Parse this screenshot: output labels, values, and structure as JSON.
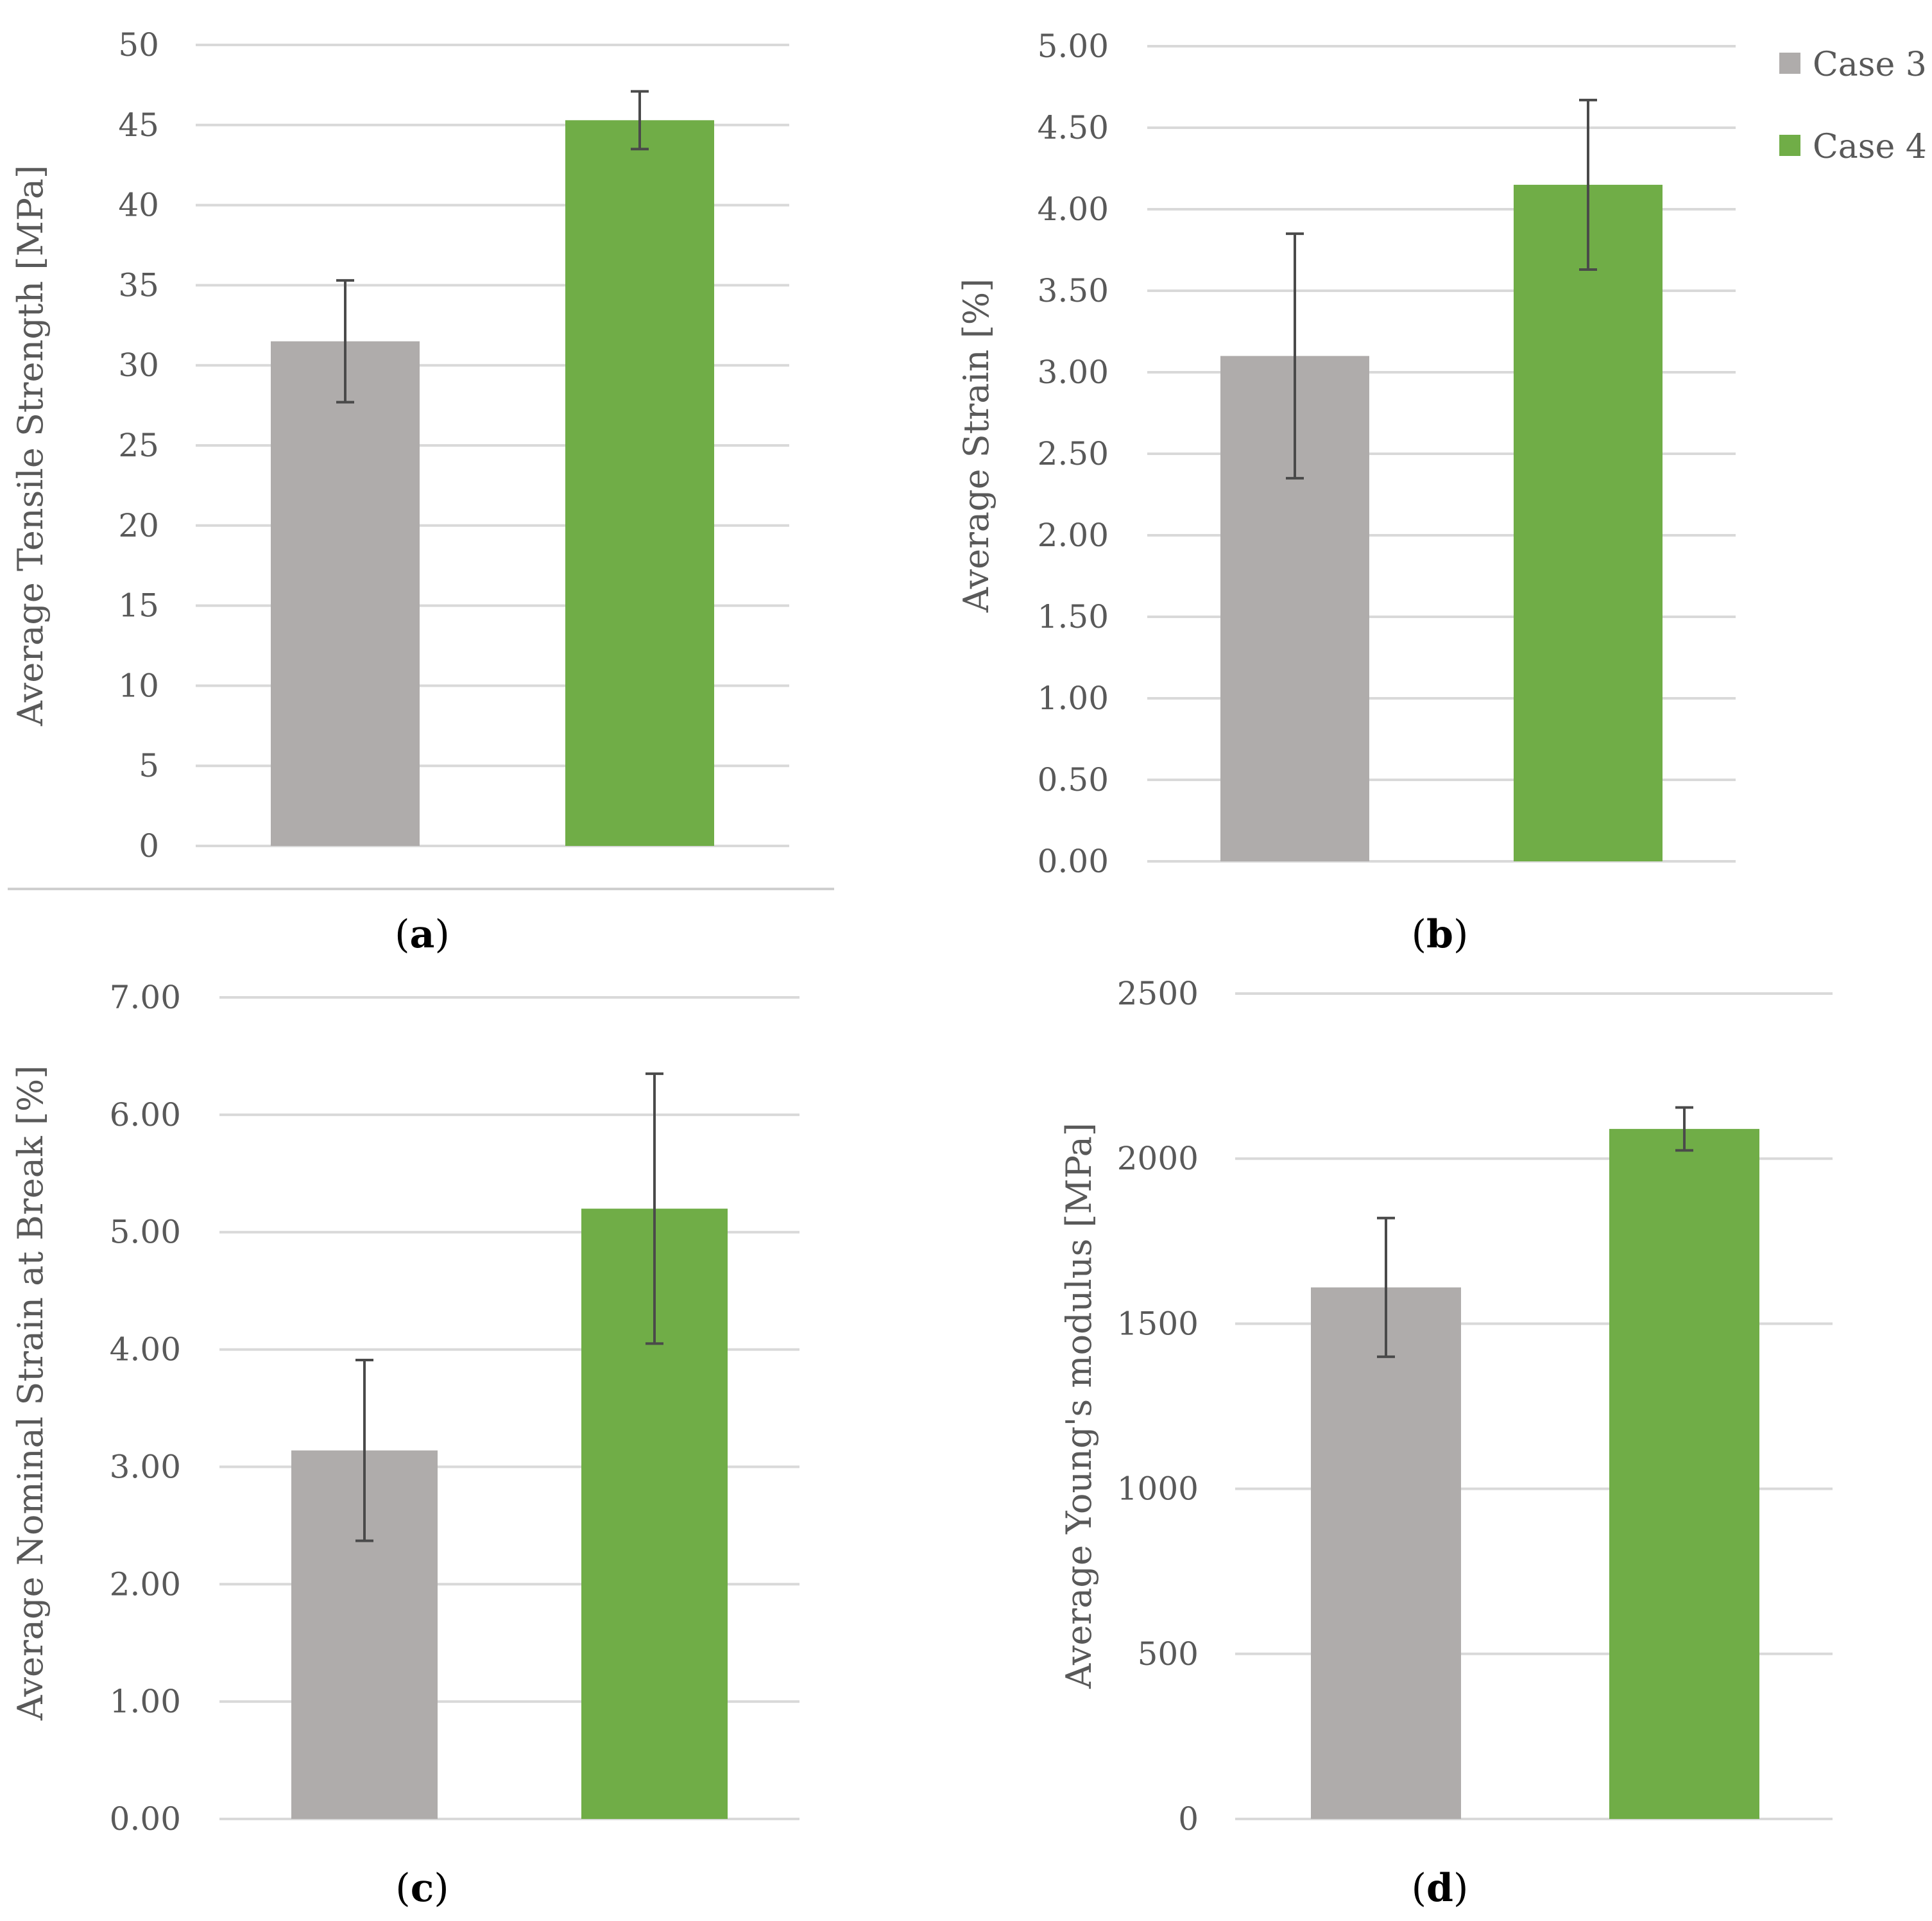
{
  "chart_data": [
    {
      "panel": "(a)",
      "type": "bar",
      "categories": [
        "Case 3",
        "Case 4"
      ],
      "values": [
        31.5,
        45.3
      ],
      "errors": [
        3.8,
        1.8
      ],
      "ylabel": "Average Tensile Strength [MPa]",
      "ylim": [
        0,
        50
      ],
      "yticks": [
        "0",
        "5",
        "10",
        "15",
        "20",
        "25",
        "30",
        "35",
        "40",
        "45",
        "50"
      ],
      "grid": true
    },
    {
      "panel": "(b)",
      "type": "bar",
      "categories": [
        "Case 3",
        "Case 4"
      ],
      "values": [
        3.1,
        4.15
      ],
      "errors": [
        0.75,
        0.52
      ],
      "ylabel": "Average Strain [%]",
      "ylim": [
        0,
        5
      ],
      "yticks": [
        "0.00",
        "0.50",
        "1.00",
        "1.50",
        "2.00",
        "2.50",
        "3.00",
        "3.50",
        "4.00",
        "4.50",
        "5.00"
      ],
      "grid": true
    },
    {
      "panel": "(c)",
      "type": "bar",
      "categories": [
        "Case 3",
        "Case 4"
      ],
      "values": [
        3.14,
        5.2
      ],
      "errors": [
        0.77,
        1.15
      ],
      "ylabel": "Average Nominal Strain at Break [%]",
      "ylim": [
        0,
        7
      ],
      "yticks": [
        "0.00",
        "1.00",
        "2.00",
        "3.00",
        "4.00",
        "5.00",
        "6.00",
        "7.00"
      ],
      "grid": true
    },
    {
      "panel": "(d)",
      "type": "bar",
      "categories": [
        "Case 3",
        "Case 4"
      ],
      "values": [
        1610,
        2090
      ],
      "errors": [
        210,
        65
      ],
      "ylabel": "Average Young's modulus [MPa]",
      "ylim": [
        0,
        2500
      ],
      "yticks": [
        "0",
        "500",
        "1000",
        "1500",
        "2000",
        "2500"
      ],
      "grid": true
    }
  ],
  "legend": {
    "position": "top-right",
    "items": [
      {
        "label": "Case 3",
        "color": "#afacab"
      },
      {
        "label": "Case 4",
        "color": "#70ad47"
      }
    ]
  },
  "colors": {
    "case3": "#afacab",
    "case4": "#70ad47",
    "grid": "#d9d9d9",
    "text": "#595959",
    "error_bar": "#4a4a4a"
  }
}
